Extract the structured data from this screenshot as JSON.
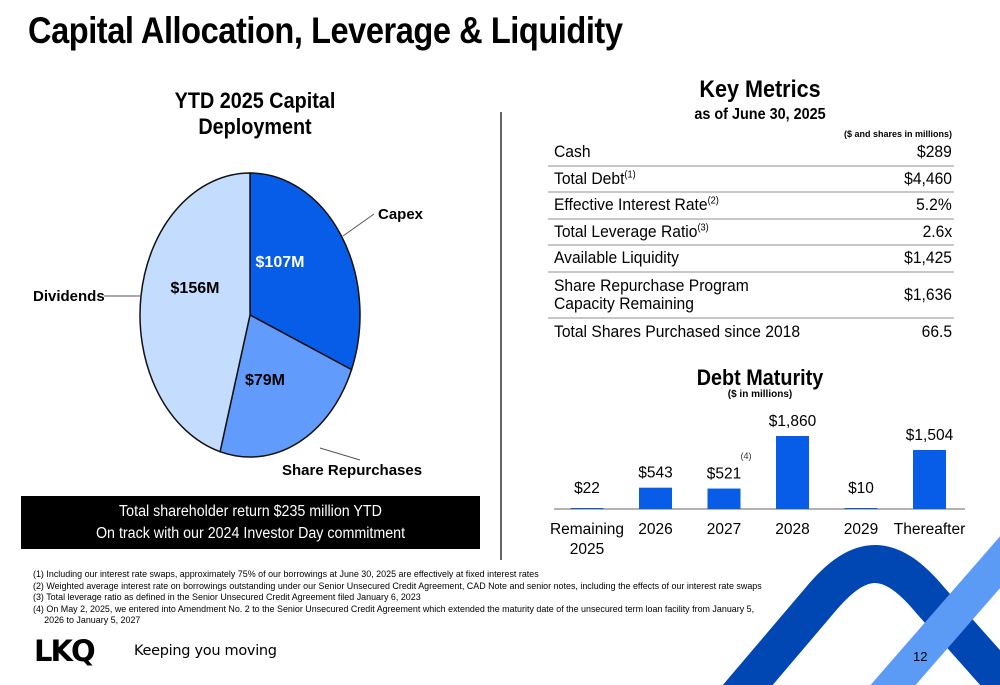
{
  "page": {
    "title": "Capital Allocation, Leverage & Liquidity",
    "page_number": "12"
  },
  "key_metrics": {
    "title": "Key Metrics",
    "subtitle": "as of June 30, 2025",
    "units": "($ and shares in millions)",
    "rows": [
      {
        "label": "Cash",
        "sup": "",
        "value": "$289"
      },
      {
        "label": "Total Debt",
        "sup": "(1)",
        "value": "$4,460"
      },
      {
        "label": "Effective Interest Rate",
        "sup": "(2)",
        "value": "5.2%"
      },
      {
        "label": "Total Leverage Ratio",
        "sup": "(3)",
        "value": "2.6x"
      },
      {
        "label": "Available Liquidity",
        "sup": "",
        "value": "$1,425"
      },
      {
        "label": "Share Repurchase Program",
        "label2": "Capacity Remaining",
        "sup": "",
        "value": "$1,636"
      },
      {
        "label": "Total Shares Purchased since 2018",
        "sup": "",
        "value": "66.5"
      }
    ]
  },
  "banner": {
    "line1": "Total shareholder return $235 million YTD",
    "line2": "On track with our 2024 Investor Day commitment"
  },
  "footnotes": [
    "(1) Including our interest rate swaps, approximately 75% of our borrowings at June 30, 2025 are effectively at fixed interest rates",
    "(2) Weighted average interest rate on borrowings outstanding under our Senior Unsecured Credit Agreement, CAD Note and senior notes, including the effects of our interest rate swaps",
    "(3) Total leverage ratio as defined in the Senior Unsecured Credit Agreement filed January 6, 2023",
    "(4) On May 2, 2025, we entered into Amendment No. 2 to the Senior Unsecured Credit Agreement which extended the maturity date of the unsecured term loan facility from January 5,",
    "2026 to January 5, 2027"
  ],
  "brand": {
    "logo": "LKQ",
    "tagline": "Keeping you moving",
    "colors": {
      "primary": "#0050b0",
      "accent": "#5b9bf5",
      "bar": "#075ce8"
    }
  },
  "chart_data": [
    {
      "type": "pie",
      "title": "YTD 2025 Capital Deployment",
      "categories": [
        "Capex",
        "Share Repurchases",
        "Dividends"
      ],
      "values": [
        107,
        79,
        156
      ],
      "labels": [
        "$107M",
        "$79M",
        "$156M"
      ],
      "units": "$M",
      "colors": [
        "#075ce8",
        "#619bfb",
        "#c4dcfd"
      ],
      "legend": "callout-labels"
    },
    {
      "type": "bar",
      "title": "Debt Maturity",
      "subtitle": "($ in millions)",
      "categories": [
        "Remaining 2025",
        "2026",
        "2027",
        "2028",
        "2029",
        "Thereafter"
      ],
      "category_lines": [
        [
          "Remaining",
          "2025"
        ],
        [
          "2026"
        ],
        [
          "2027"
        ],
        [
          "2028"
        ],
        [
          "2029"
        ],
        [
          "Thereafter"
        ]
      ],
      "values": [
        22,
        543,
        521,
        1860,
        10,
        1504
      ],
      "labels": [
        "$22",
        "$543",
        "$521",
        "$1,860",
        "$10",
        "$1,504"
      ],
      "annotations": [
        {
          "category": "2027",
          "text": "(4)"
        }
      ],
      "ylim": [
        0,
        1900
      ],
      "grid": false,
      "color": "#075ce8"
    }
  ]
}
